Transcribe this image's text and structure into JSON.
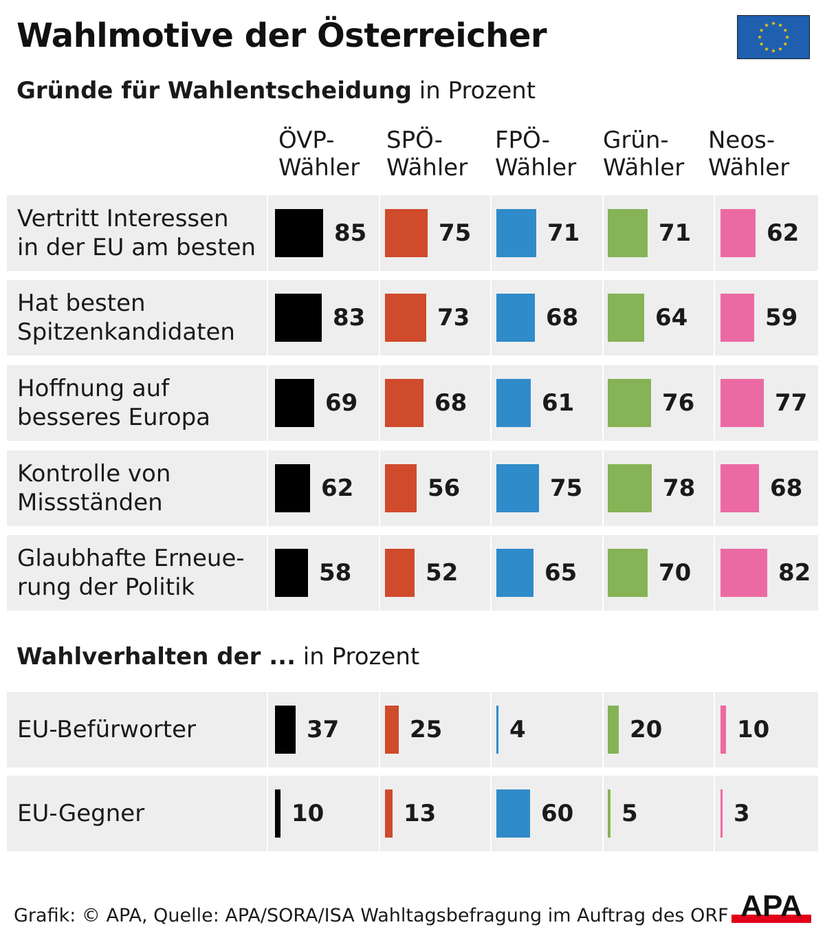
{
  "title": "Wahlmotive der Österreicher",
  "section1": {
    "title_bold": "Gründe für Wahlentscheidung",
    "title_rest": " in Prozent"
  },
  "section2": {
    "title_bold": "Wahlverhalten der ...",
    "title_rest": " in Prozent"
  },
  "columns": [
    {
      "line1": "ÖVP-",
      "line2": "Wähler",
      "color": "#000000"
    },
    {
      "line1": "SPÖ-",
      "line2": "Wähler",
      "color": "#d04a2c"
    },
    {
      "line1": "FPÖ-",
      "line2": "Wähler",
      "color": "#2f8bc9"
    },
    {
      "line1": "Grün-",
      "line2": "Wähler",
      "color": "#86b356"
    },
    {
      "line1": "Neos-",
      "line2": "Wähler",
      "color": "#ec6aa3"
    }
  ],
  "chart_data": [
    {
      "type": "table",
      "title": "Gründe für Wahlentscheidung in Prozent",
      "categories": [
        "ÖVP-Wähler",
        "SPÖ-Wähler",
        "FPÖ-Wähler",
        "Grün-Wähler",
        "Neos-Wähler"
      ],
      "series": [
        {
          "name": "Vertritt Interessen in der EU am besten",
          "label_lines": [
            "Vertritt Interessen",
            "in der EU am besten"
          ],
          "values": [
            85,
            75,
            71,
            71,
            62
          ]
        },
        {
          "name": "Hat besten Spitzenkandidaten",
          "label_lines": [
            "Hat besten",
            "Spitzenkandidaten"
          ],
          "values": [
            83,
            73,
            68,
            64,
            59
          ]
        },
        {
          "name": "Hoffnung auf besseres Europa",
          "label_lines": [
            "Hoffnung auf",
            "besseres Europa"
          ],
          "values": [
            69,
            68,
            61,
            76,
            77
          ]
        },
        {
          "name": "Kontrolle von Missständen",
          "label_lines": [
            "Kontrolle von",
            "Missständen"
          ],
          "values": [
            62,
            56,
            75,
            78,
            68
          ]
        },
        {
          "name": "Glaubhafte Erneuerung der Politik",
          "label_lines": [
            "Glaubhafte Erneue-",
            "rung der Politik"
          ],
          "values": [
            58,
            52,
            65,
            70,
            82
          ]
        }
      ]
    },
    {
      "type": "table",
      "title": "Wahlverhalten der ... in Prozent",
      "categories": [
        "ÖVP-Wähler",
        "SPÖ-Wähler",
        "FPÖ-Wähler",
        "Grün-Wähler",
        "Neos-Wähler"
      ],
      "series": [
        {
          "name": "EU-Befürworter",
          "label_lines": [
            "EU-Befürworter"
          ],
          "values": [
            37,
            25,
            4,
            20,
            10
          ]
        },
        {
          "name": "EU-Gegner",
          "label_lines": [
            "EU-Gegner"
          ],
          "values": [
            10,
            13,
            60,
            5,
            3
          ]
        }
      ]
    }
  ],
  "footer": "Grafik: © APA, Quelle: APA/SORA/ISA Wahltagsbefragung im Auftrag des ORF",
  "logo_text": "APA",
  "logo_color": "#e2001a",
  "flag_color": "#1f5fb0",
  "star_color": "#ffcc00",
  "row_bg_color": "#eeeeee"
}
